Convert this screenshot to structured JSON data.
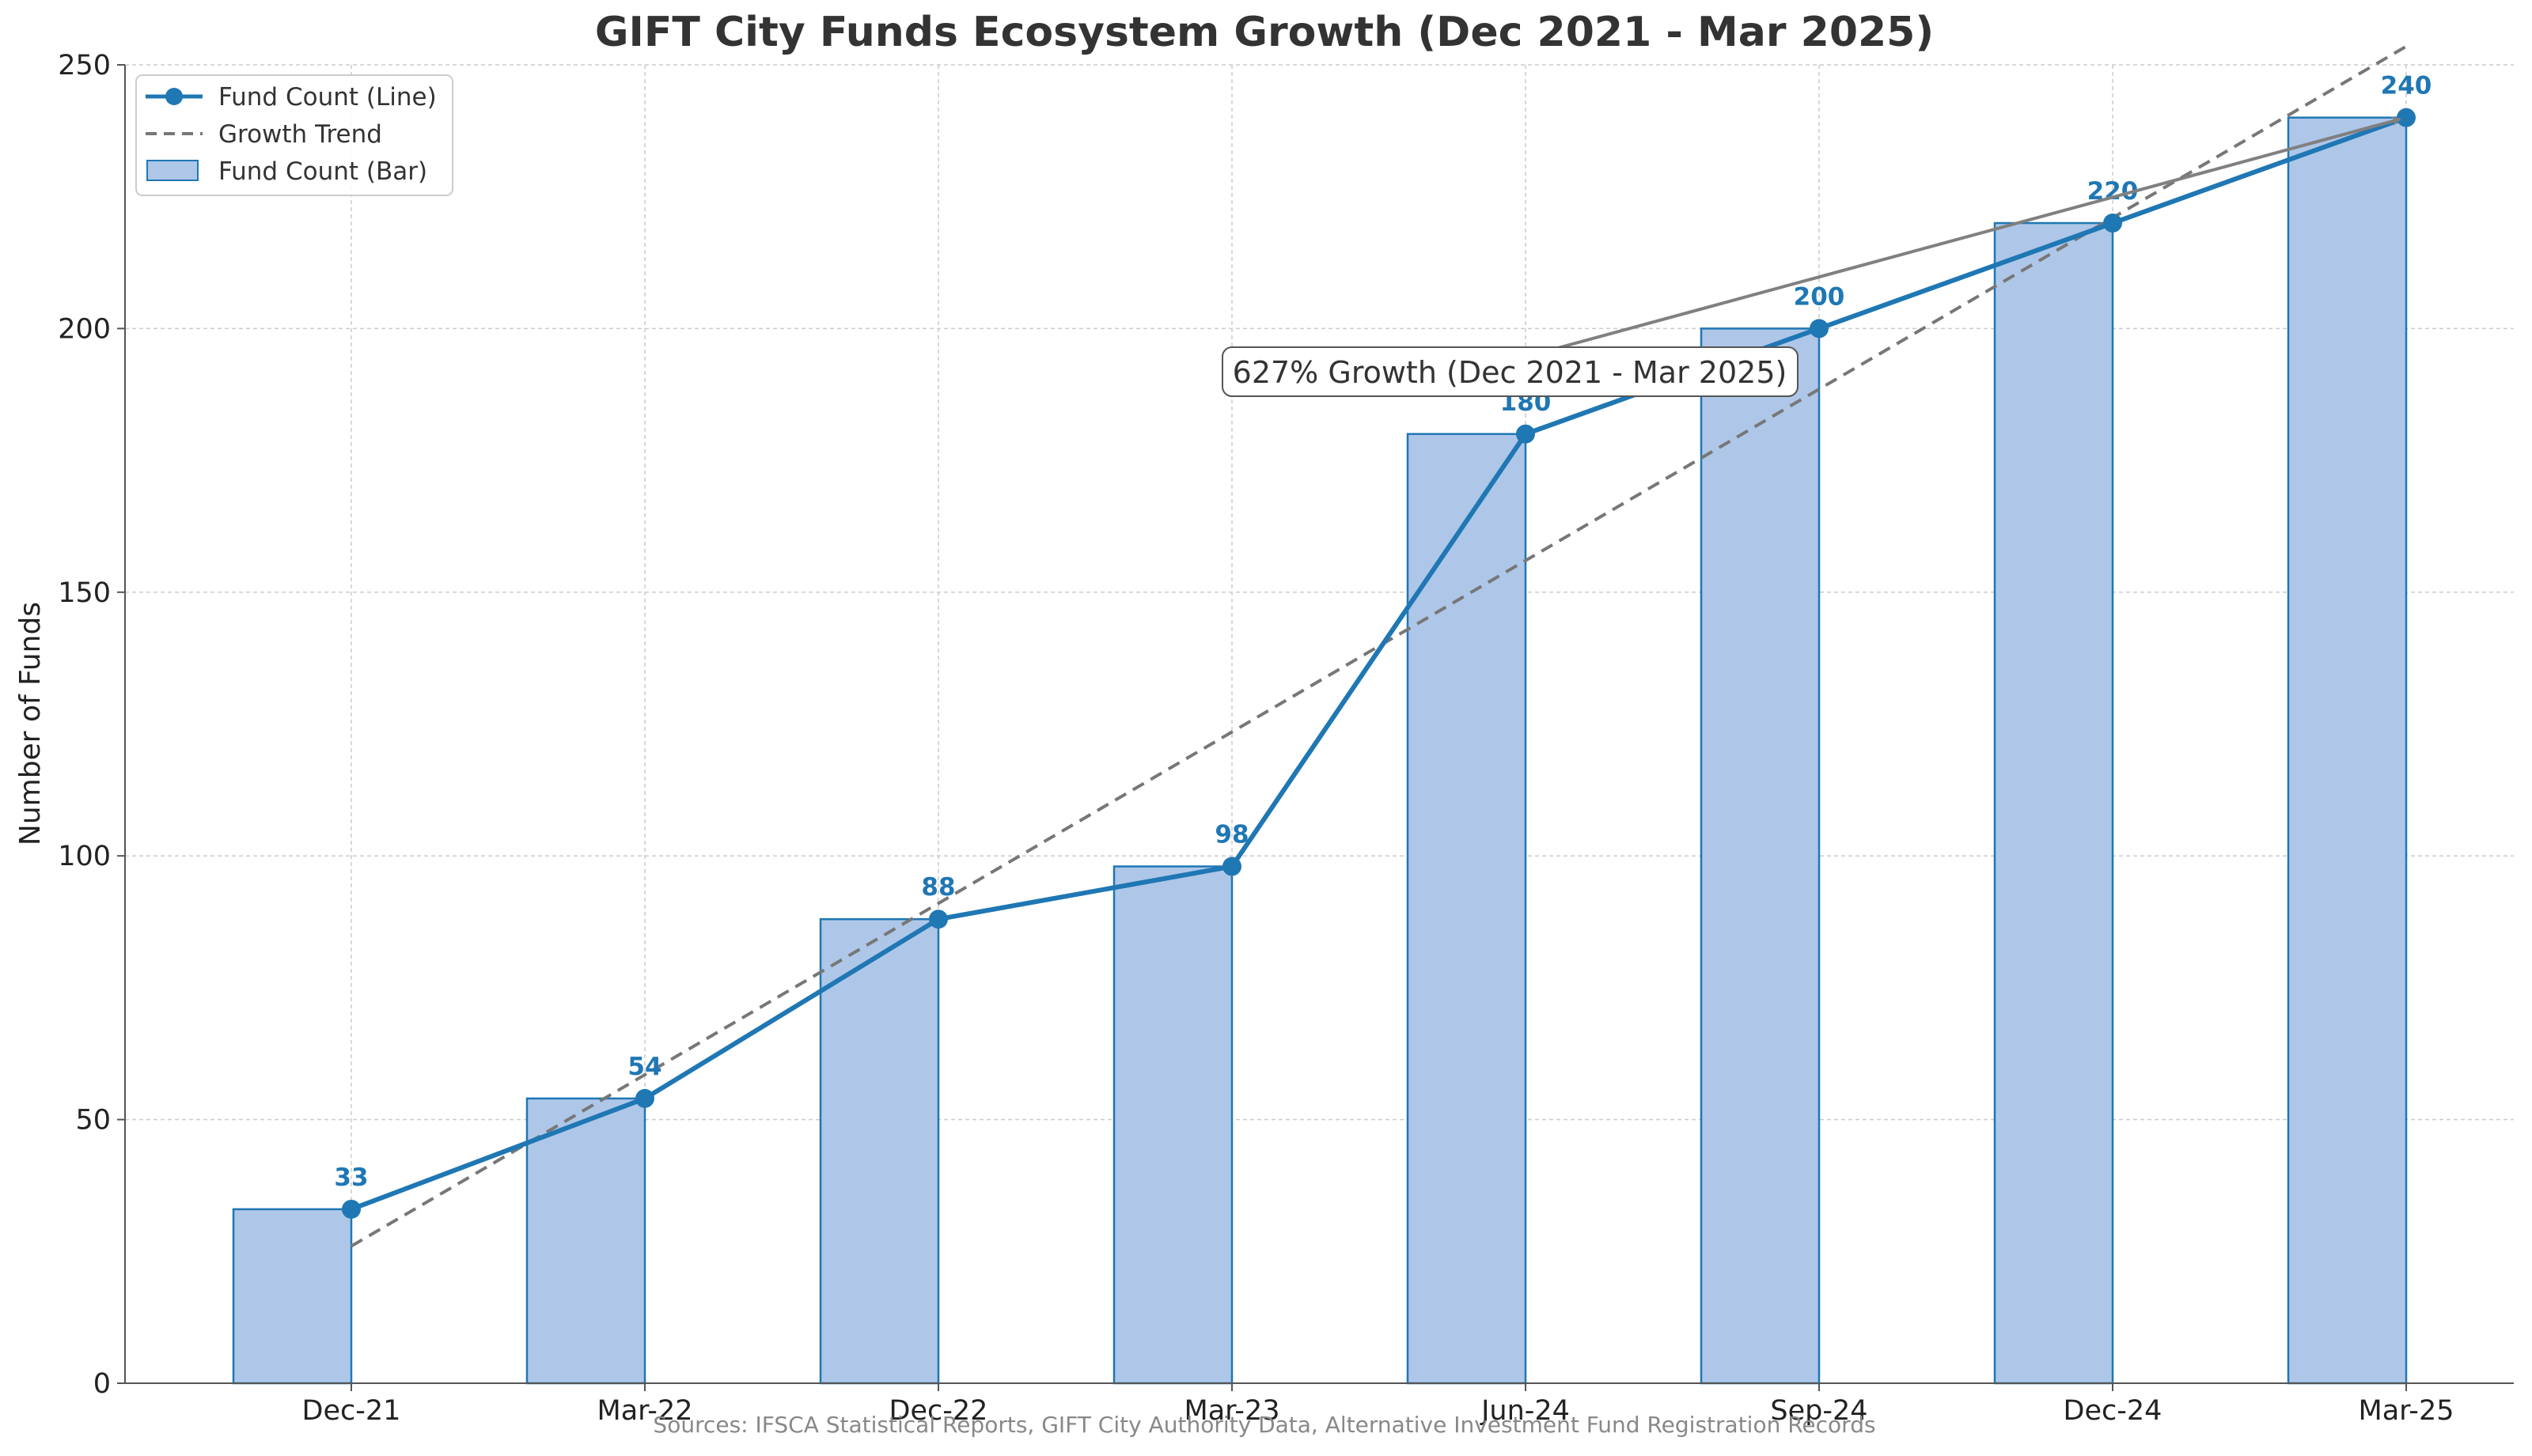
{
  "chart_data": {
    "type": "bar",
    "title": "GIFT City Funds Ecosystem Growth (Dec 2021 - Mar 2025)",
    "xlabel": "",
    "ylabel": "Number of Funds",
    "categories": [
      "Dec-21",
      "Mar-22",
      "Dec-22",
      "Mar-23",
      "Jun-24",
      "Sep-24",
      "Dec-24",
      "Mar-25"
    ],
    "series": [
      {
        "name": "Fund Count (Bar)",
        "kind": "bar",
        "values": [
          33,
          54,
          88,
          98,
          180,
          200,
          220,
          240
        ],
        "color": "#aec7e8",
        "edge_color": "#1f77b4"
      },
      {
        "name": "Fund Count (Line)",
        "kind": "line",
        "values": [
          33,
          54,
          88,
          98,
          180,
          200,
          220,
          240
        ],
        "color": "#1f77b4"
      },
      {
        "name": "Growth Trend",
        "kind": "dashed-line",
        "values": [
          26,
          58.5,
          91,
          123.5,
          156,
          188.5,
          221,
          253.5
        ],
        "color": "#777777"
      }
    ],
    "data_labels": [
      "33",
      "54",
      "88",
      "98",
      "180",
      "200",
      "220",
      "240"
    ],
    "ylim": [
      0,
      250
    ],
    "yticks": [
      0,
      50,
      100,
      150,
      200,
      250
    ],
    "ytick_labels": [
      "0",
      "50",
      "100",
      "150",
      "200",
      "250"
    ],
    "grid": true,
    "legend": {
      "position": "top-left",
      "entries": [
        "Fund Count (Line)",
        "Growth Trend",
        "Fund Count (Bar)"
      ]
    },
    "annotation": {
      "text": "627% Growth (Dec 2021 - Mar 2025)",
      "arrow_to_category": "Mar-25",
      "arrow_to_value": 240,
      "color": "#808080"
    },
    "footnote": "Sources: IFSCA Statistical Reports, GIFT City Authority Data, Alternative Investment Fund Registration Records"
  }
}
